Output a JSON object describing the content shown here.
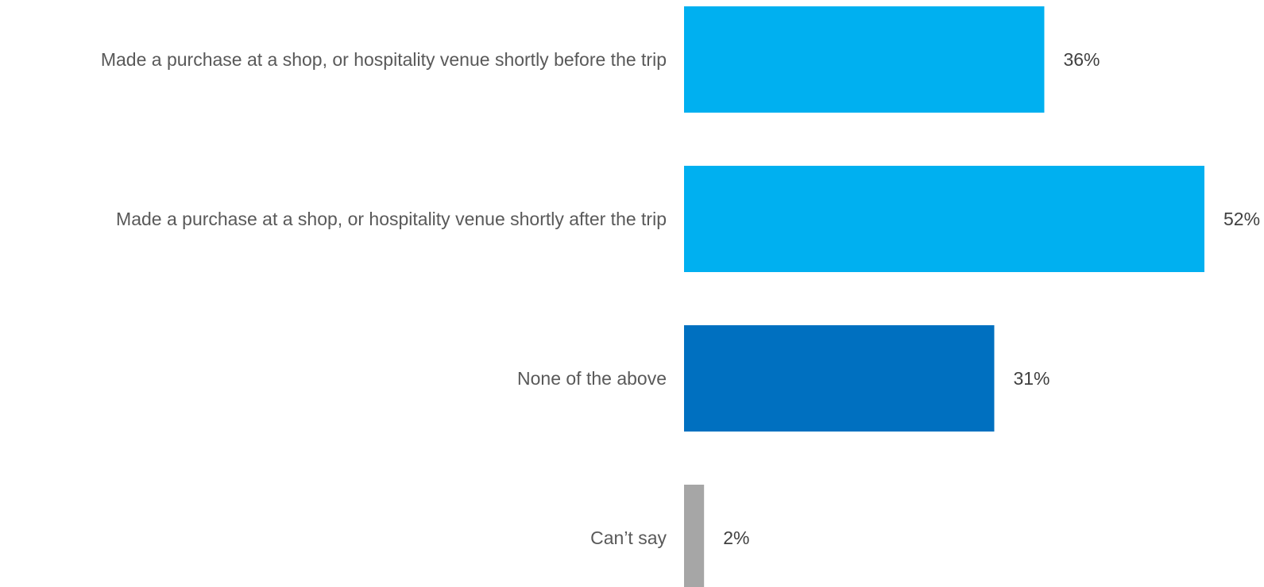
{
  "chart_data": {
    "type": "bar",
    "orientation": "horizontal",
    "categories": [
      "Made a purchase at a shop, or hospitality venue shortly before the trip",
      "Made a purchase at a shop, or hospitality venue shortly after the trip",
      "None of the above",
      "Can’t say"
    ],
    "values": [
      36,
      52,
      31,
      2
    ],
    "value_labels": [
      "36%",
      "52%",
      "31%",
      "2%"
    ],
    "bar_colors": [
      "#00B0F0",
      "#00B0F0",
      "#0070C0",
      "#A6A6A6"
    ],
    "unit": "%",
    "xlim": [
      0,
      52
    ],
    "title": "",
    "xlabel": "",
    "ylabel": "",
    "grid": false,
    "legend": "none"
  }
}
